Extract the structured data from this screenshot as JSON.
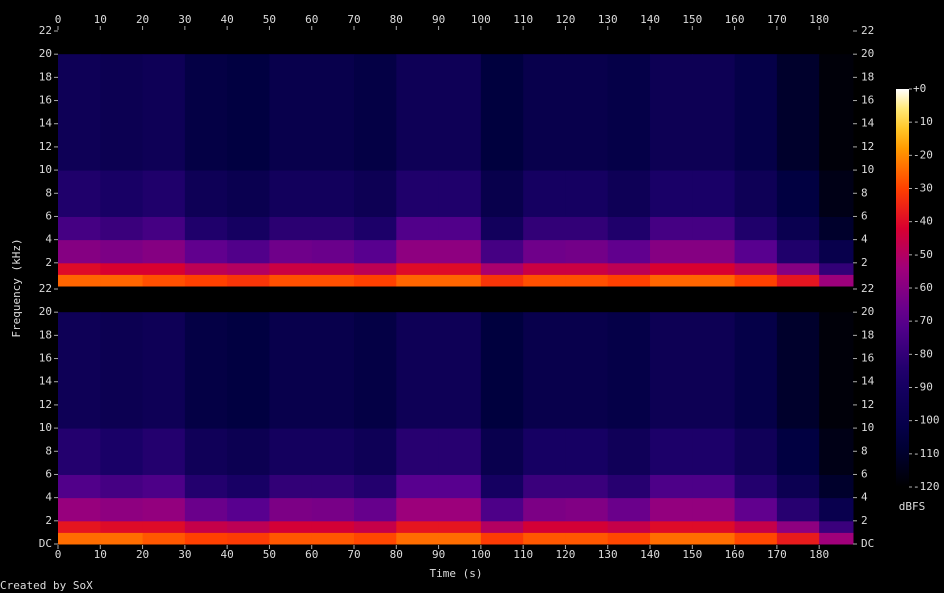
{
  "chart_data": {
    "type": "spectrogram",
    "xlabel": "Time (s)",
    "ylabel": "Frequency (kHz)",
    "credit": "Created by SoX",
    "xlim": [
      0,
      188
    ],
    "xticks": [
      0,
      10,
      20,
      30,
      40,
      50,
      60,
      70,
      80,
      90,
      100,
      110,
      120,
      130,
      140,
      150,
      160,
      170,
      180
    ],
    "ylim": [
      0,
      22
    ],
    "x_bins": [
      0,
      10,
      20,
      30,
      40,
      50,
      60,
      70,
      80,
      90,
      100,
      110,
      120,
      130,
      140,
      150,
      160,
      170,
      180,
      188
    ],
    "freq_bins": [
      0,
      1,
      2,
      4,
      6,
      10,
      20
    ],
    "channels": [
      {
        "yticks": [
          2,
          4,
          6,
          8,
          10,
          12,
          14,
          16,
          18,
          20,
          22
        ],
        "values": [
          [
            -25,
            -40,
            -60,
            -75,
            -85,
            -95
          ],
          [
            -25,
            -42,
            -62,
            -78,
            -88,
            -97
          ],
          [
            -28,
            -42,
            -60,
            -75,
            -85,
            -95
          ],
          [
            -30,
            -48,
            -68,
            -85,
            -95,
            -103
          ],
          [
            -32,
            -50,
            -72,
            -90,
            -98,
            -105
          ],
          [
            -28,
            -45,
            -65,
            -82,
            -92,
            -100
          ],
          [
            -28,
            -45,
            -66,
            -82,
            -92,
            -100
          ],
          [
            -30,
            -48,
            -70,
            -86,
            -96,
            -103
          ],
          [
            -25,
            -40,
            -58,
            -72,
            -85,
            -95
          ],
          [
            -25,
            -40,
            -58,
            -72,
            -85,
            -95
          ],
          [
            -32,
            -52,
            -75,
            -92,
            -100,
            -106
          ],
          [
            -28,
            -45,
            -65,
            -80,
            -90,
            -100
          ],
          [
            -28,
            -45,
            -64,
            -80,
            -90,
            -100
          ],
          [
            -30,
            -48,
            -68,
            -85,
            -95,
            -102
          ],
          [
            -25,
            -42,
            -60,
            -75,
            -87,
            -96
          ],
          [
            -25,
            -42,
            -60,
            -75,
            -87,
            -96
          ],
          [
            -30,
            -48,
            -70,
            -85,
            -95,
            -102
          ],
          [
            -38,
            -60,
            -85,
            -98,
            -105,
            -110
          ],
          [
            -55,
            -80,
            -100,
            -110,
            -115,
            -118
          ]
        ]
      },
      {
        "yticks": [
          {
            "value": 0,
            "label": "DC"
          },
          2,
          4,
          6,
          8,
          10,
          12,
          14,
          16,
          18,
          20,
          22
        ],
        "values": [
          [
            -24,
            -38,
            -56,
            -72,
            -84,
            -95
          ],
          [
            -24,
            -40,
            -58,
            -75,
            -87,
            -97
          ],
          [
            -27,
            -40,
            -57,
            -73,
            -84,
            -95
          ],
          [
            -30,
            -46,
            -66,
            -84,
            -94,
            -103
          ],
          [
            -31,
            -48,
            -70,
            -88,
            -97,
            -105
          ],
          [
            -27,
            -43,
            -62,
            -80,
            -91,
            -100
          ],
          [
            -27,
            -43,
            -63,
            -80,
            -91,
            -100
          ],
          [
            -29,
            -46,
            -67,
            -84,
            -95,
            -103
          ],
          [
            -24,
            -38,
            -55,
            -70,
            -83,
            -95
          ],
          [
            -24,
            -38,
            -55,
            -70,
            -83,
            -95
          ],
          [
            -31,
            -50,
            -73,
            -90,
            -99,
            -106
          ],
          [
            -27,
            -43,
            -62,
            -78,
            -89,
            -100
          ],
          [
            -27,
            -43,
            -61,
            -78,
            -89,
            -100
          ],
          [
            -29,
            -46,
            -66,
            -83,
            -94,
            -102
          ],
          [
            -24,
            -40,
            -57,
            -73,
            -86,
            -96
          ],
          [
            -24,
            -40,
            -57,
            -73,
            -86,
            -96
          ],
          [
            -29,
            -46,
            -68,
            -84,
            -94,
            -102
          ],
          [
            -37,
            -58,
            -83,
            -97,
            -105,
            -110
          ],
          [
            -54,
            -78,
            -99,
            -110,
            -115,
            -118
          ]
        ]
      }
    ],
    "zlabel": "dBFS",
    "zlim": [
      -120,
      0
    ],
    "zticks": [
      {
        "value": 0,
        "label": "+0"
      },
      -10,
      -20,
      -30,
      -40,
      -50,
      -60,
      -70,
      -80,
      -90,
      -100,
      -110,
      -120
    ]
  }
}
